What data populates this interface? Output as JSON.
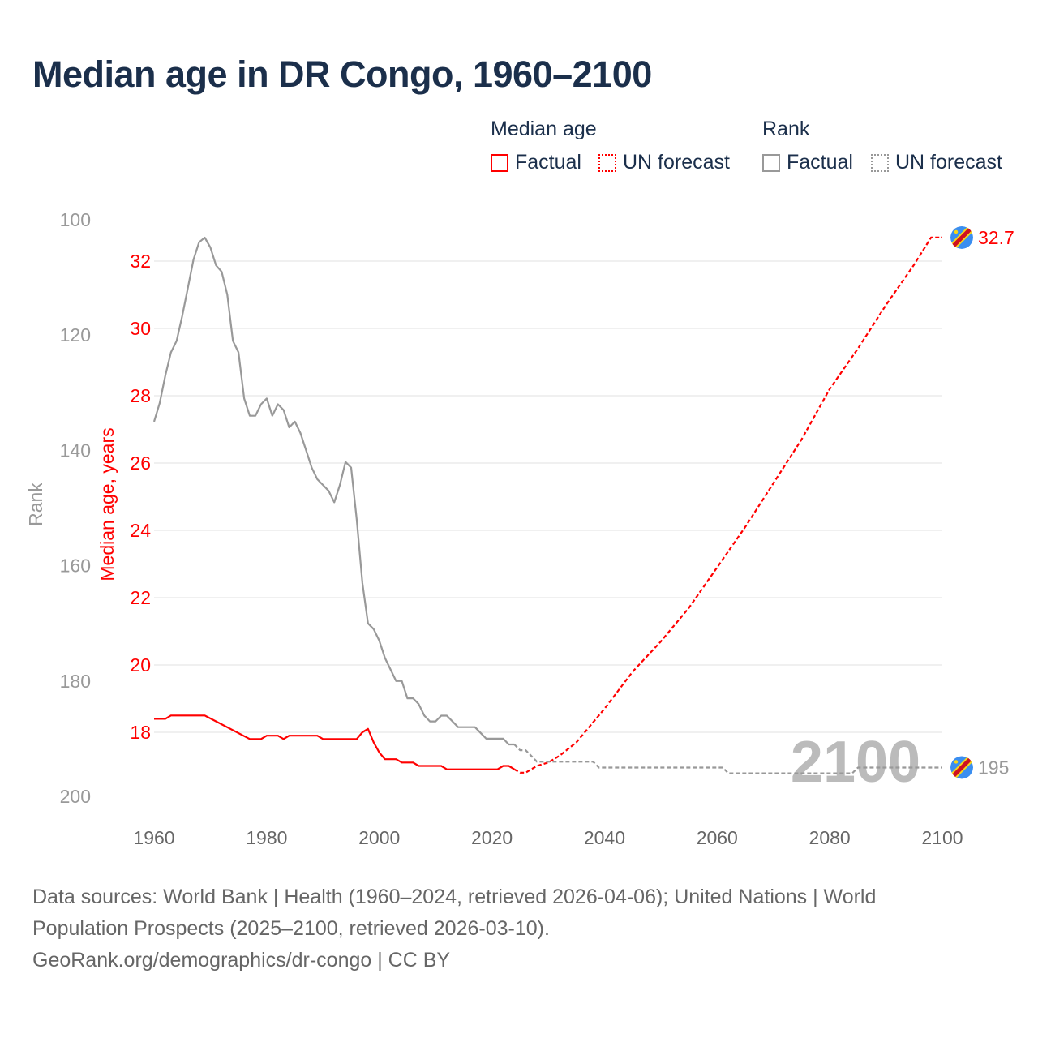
{
  "title": "Median age in DR Congo, 1960–2100",
  "legend": {
    "median_heading": "Median age",
    "rank_heading": "Rank",
    "factual": "Factual",
    "forecast": "UN forecast"
  },
  "colors": {
    "median": "#ff0000",
    "rank": "#999999",
    "title": "#1b2f4b",
    "flag_blue": "#3a8ef0",
    "flag_red": "#ce1021",
    "flag_yellow": "#f7d618"
  },
  "footer": {
    "line1": "Data sources: World Bank | Health (1960–2024, retrieved 2026-04-06); United Nations | World",
    "line2": "Population Prospects (2025–2100, retrieved 2026-03-10).",
    "line3": "GeoRank.org/demographics/dr-congo | CC BY"
  },
  "chart_data": {
    "type": "line",
    "title": "Median age in DR Congo, 1960–2100",
    "xlabel": "",
    "ylabel_left_outer": "Rank",
    "ylabel_left_inner": "Median age, years",
    "xlim": [
      1960,
      2100
    ],
    "ylim_median": [
      18,
      32
    ],
    "ylim_rank": [
      100,
      200
    ],
    "rank_inverted": true,
    "x_ticks": [
      "1960",
      "1980",
      "2000",
      "2020",
      "2040",
      "2060",
      "2080",
      "2100"
    ],
    "median_ticks": [
      "18",
      "20",
      "22",
      "24",
      "26",
      "28",
      "30",
      "32"
    ],
    "rank_ticks": [
      "100",
      "120",
      "140",
      "160",
      "180",
      "200"
    ],
    "watermark_year": "2100",
    "end_labels": {
      "median": "32.7",
      "rank": "195"
    },
    "series": [
      {
        "name": "Median age – Factual",
        "style": "solid",
        "color": "#ff0000",
        "points": [
          [
            1960,
            18.4
          ],
          [
            1962,
            18.4
          ],
          [
            1963,
            18.5
          ],
          [
            1969,
            18.5
          ],
          [
            1977,
            17.8
          ],
          [
            1979,
            17.8
          ],
          [
            1980,
            17.9
          ],
          [
            1982,
            17.9
          ],
          [
            1983,
            17.8
          ],
          [
            1984,
            17.9
          ],
          [
            1989,
            17.9
          ],
          [
            1990,
            17.8
          ],
          [
            1996,
            17.8
          ],
          [
            1997,
            18.0
          ],
          [
            1998,
            18.1
          ],
          [
            1999,
            17.7
          ],
          [
            2000,
            17.4
          ],
          [
            2001,
            17.2
          ],
          [
            2003,
            17.2
          ],
          [
            2004,
            17.1
          ],
          [
            2006,
            17.1
          ],
          [
            2007,
            17.0
          ],
          [
            2011,
            17.0
          ],
          [
            2012,
            16.9
          ],
          [
            2021,
            16.9
          ],
          [
            2022,
            17.0
          ],
          [
            2023,
            17.0
          ],
          [
            2024,
            16.9
          ]
        ]
      },
      {
        "name": "Median age – UN forecast",
        "style": "dashed",
        "color": "#ff0000",
        "points": [
          [
            2024,
            16.9
          ],
          [
            2025,
            16.8
          ],
          [
            2026,
            16.8
          ],
          [
            2028,
            17.0
          ],
          [
            2030,
            17.1
          ],
          [
            2032,
            17.3
          ],
          [
            2035,
            17.7
          ],
          [
            2040,
            18.7
          ],
          [
            2045,
            19.8
          ],
          [
            2050,
            20.7
          ],
          [
            2055,
            21.7
          ],
          [
            2060,
            22.9
          ],
          [
            2065,
            24.1
          ],
          [
            2070,
            25.4
          ],
          [
            2075,
            26.7
          ],
          [
            2080,
            28.2
          ],
          [
            2085,
            29.4
          ],
          [
            2090,
            30.7
          ],
          [
            2095,
            31.9
          ],
          [
            2098,
            32.7
          ],
          [
            2100,
            32.7
          ]
        ]
      },
      {
        "name": "Rank – Factual",
        "style": "solid",
        "color": "#999999",
        "points": [
          [
            1960,
            135
          ],
          [
            1961,
            131.8
          ],
          [
            1962,
            127
          ],
          [
            1963,
            123
          ],
          [
            1964,
            121
          ],
          [
            1965,
            116.7
          ],
          [
            1966,
            111.8
          ],
          [
            1967,
            106.9
          ],
          [
            1968,
            103.9
          ],
          [
            1969,
            103.1
          ],
          [
            1970,
            104.8
          ],
          [
            1971,
            107.9
          ],
          [
            1972,
            109
          ],
          [
            1973,
            113
          ],
          [
            1974,
            121
          ],
          [
            1975,
            123
          ],
          [
            1976,
            131
          ],
          [
            1977,
            134
          ],
          [
            1978,
            134
          ],
          [
            1979,
            132
          ],
          [
            1980,
            131
          ],
          [
            1981,
            134
          ],
          [
            1982,
            132
          ],
          [
            1983,
            133
          ],
          [
            1984,
            136
          ],
          [
            1985,
            135
          ],
          [
            1986,
            137
          ],
          [
            1987,
            140
          ],
          [
            1988,
            143
          ],
          [
            1989,
            145
          ],
          [
            1990,
            146
          ],
          [
            1991,
            147
          ],
          [
            1992,
            149
          ],
          [
            1993,
            146
          ],
          [
            1994,
            142
          ],
          [
            1995,
            143
          ],
          [
            1996,
            152
          ],
          [
            1997,
            163
          ],
          [
            1998,
            170
          ],
          [
            1999,
            171
          ],
          [
            2000,
            173
          ],
          [
            2001,
            176
          ],
          [
            2002,
            178
          ],
          [
            2003,
            180
          ],
          [
            2004,
            180
          ],
          [
            2005,
            183
          ],
          [
            2006,
            183
          ],
          [
            2007,
            184
          ],
          [
            2008,
            186
          ],
          [
            2009,
            187
          ],
          [
            2010,
            187
          ],
          [
            2011,
            186
          ],
          [
            2012,
            186
          ],
          [
            2013,
            187
          ],
          [
            2014,
            188
          ],
          [
            2017,
            188
          ],
          [
            2018,
            189
          ],
          [
            2019,
            190
          ],
          [
            2022,
            190
          ],
          [
            2023,
            191
          ],
          [
            2024,
            191
          ]
        ]
      },
      {
        "name": "Rank – UN forecast",
        "style": "dashed",
        "color": "#999999",
        "points": [
          [
            2024,
            191
          ],
          [
            2025,
            192
          ],
          [
            2026,
            192
          ],
          [
            2027,
            193
          ],
          [
            2028,
            194
          ],
          [
            2038,
            194
          ],
          [
            2039,
            195
          ],
          [
            2061,
            195
          ],
          [
            2062,
            196
          ],
          [
            2084,
            196
          ],
          [
            2085,
            195
          ],
          [
            2100,
            195
          ]
        ]
      }
    ]
  }
}
